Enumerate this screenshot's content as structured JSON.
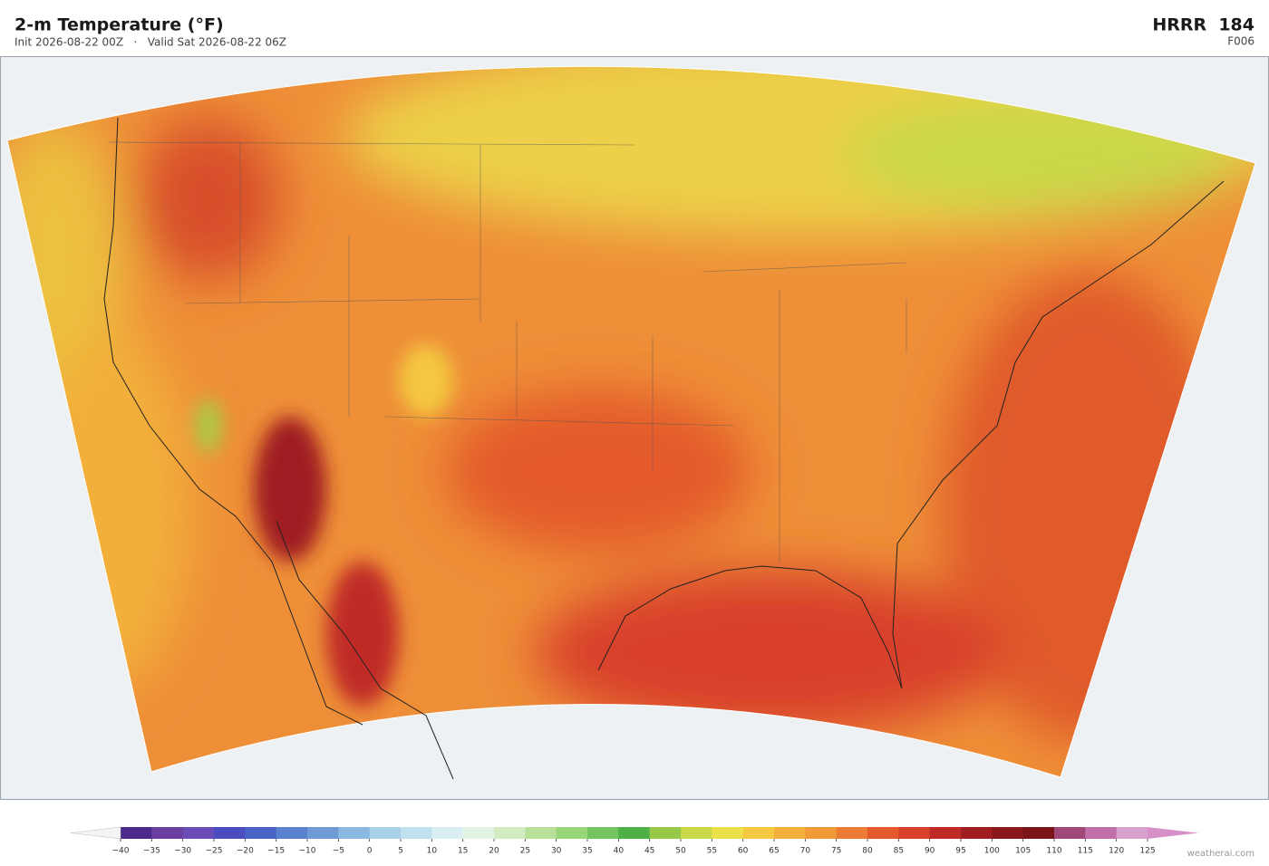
{
  "header": {
    "title": "2-m Temperature  (°F)",
    "subtitle": "Init 2026-08-22 00Z   ·   Valid Sat 2026-08-22 06Z",
    "model": "HRRR  184",
    "forecast": "F006"
  },
  "colorbar": {
    "ticks": [
      {
        "value": -40,
        "label": "−40"
      },
      {
        "value": -35,
        "label": "−35"
      },
      {
        "value": -30,
        "label": "−30"
      },
      {
        "value": -25,
        "label": "−25"
      },
      {
        "value": -20,
        "label": "−20"
      },
      {
        "value": -15,
        "label": "−15"
      },
      {
        "value": -10,
        "label": "−10"
      },
      {
        "value": -5,
        "label": "−5"
      },
      0,
      5,
      10,
      15,
      20,
      25,
      30,
      35,
      40,
      45,
      50,
      55,
      60,
      65,
      70,
      75,
      80,
      85,
      90,
      95,
      100,
      105,
      110,
      115,
      120,
      125
    ],
    "colors": [
      "#4b2a8c",
      "#6a3fa0",
      "#6b4bb5",
      "#4a4cc0",
      "#4a63c8",
      "#5a80d0",
      "#6f9ad6",
      "#8bb8e0",
      "#a8d0e8",
      "#c0e2ef",
      "#d8eef2",
      "#e4f4e4",
      "#d2ebc0",
      "#b8e098",
      "#98d478",
      "#74c460",
      "#4fb048",
      "#98c848",
      "#c8d848",
      "#ece04a",
      "#f4c840",
      "#f2b03a",
      "#f09a38",
      "#ec7c34",
      "#e45a2c",
      "#d8402a",
      "#c02a26",
      "#a01e22",
      "#88181c",
      "#7a1418",
      "#a04878",
      "#c070a8",
      "#d8a0cc"
    ],
    "under_color": "#f4f4f4",
    "over_color": "#d890c8"
  },
  "footer": {
    "credit": "weatherai.com"
  }
}
